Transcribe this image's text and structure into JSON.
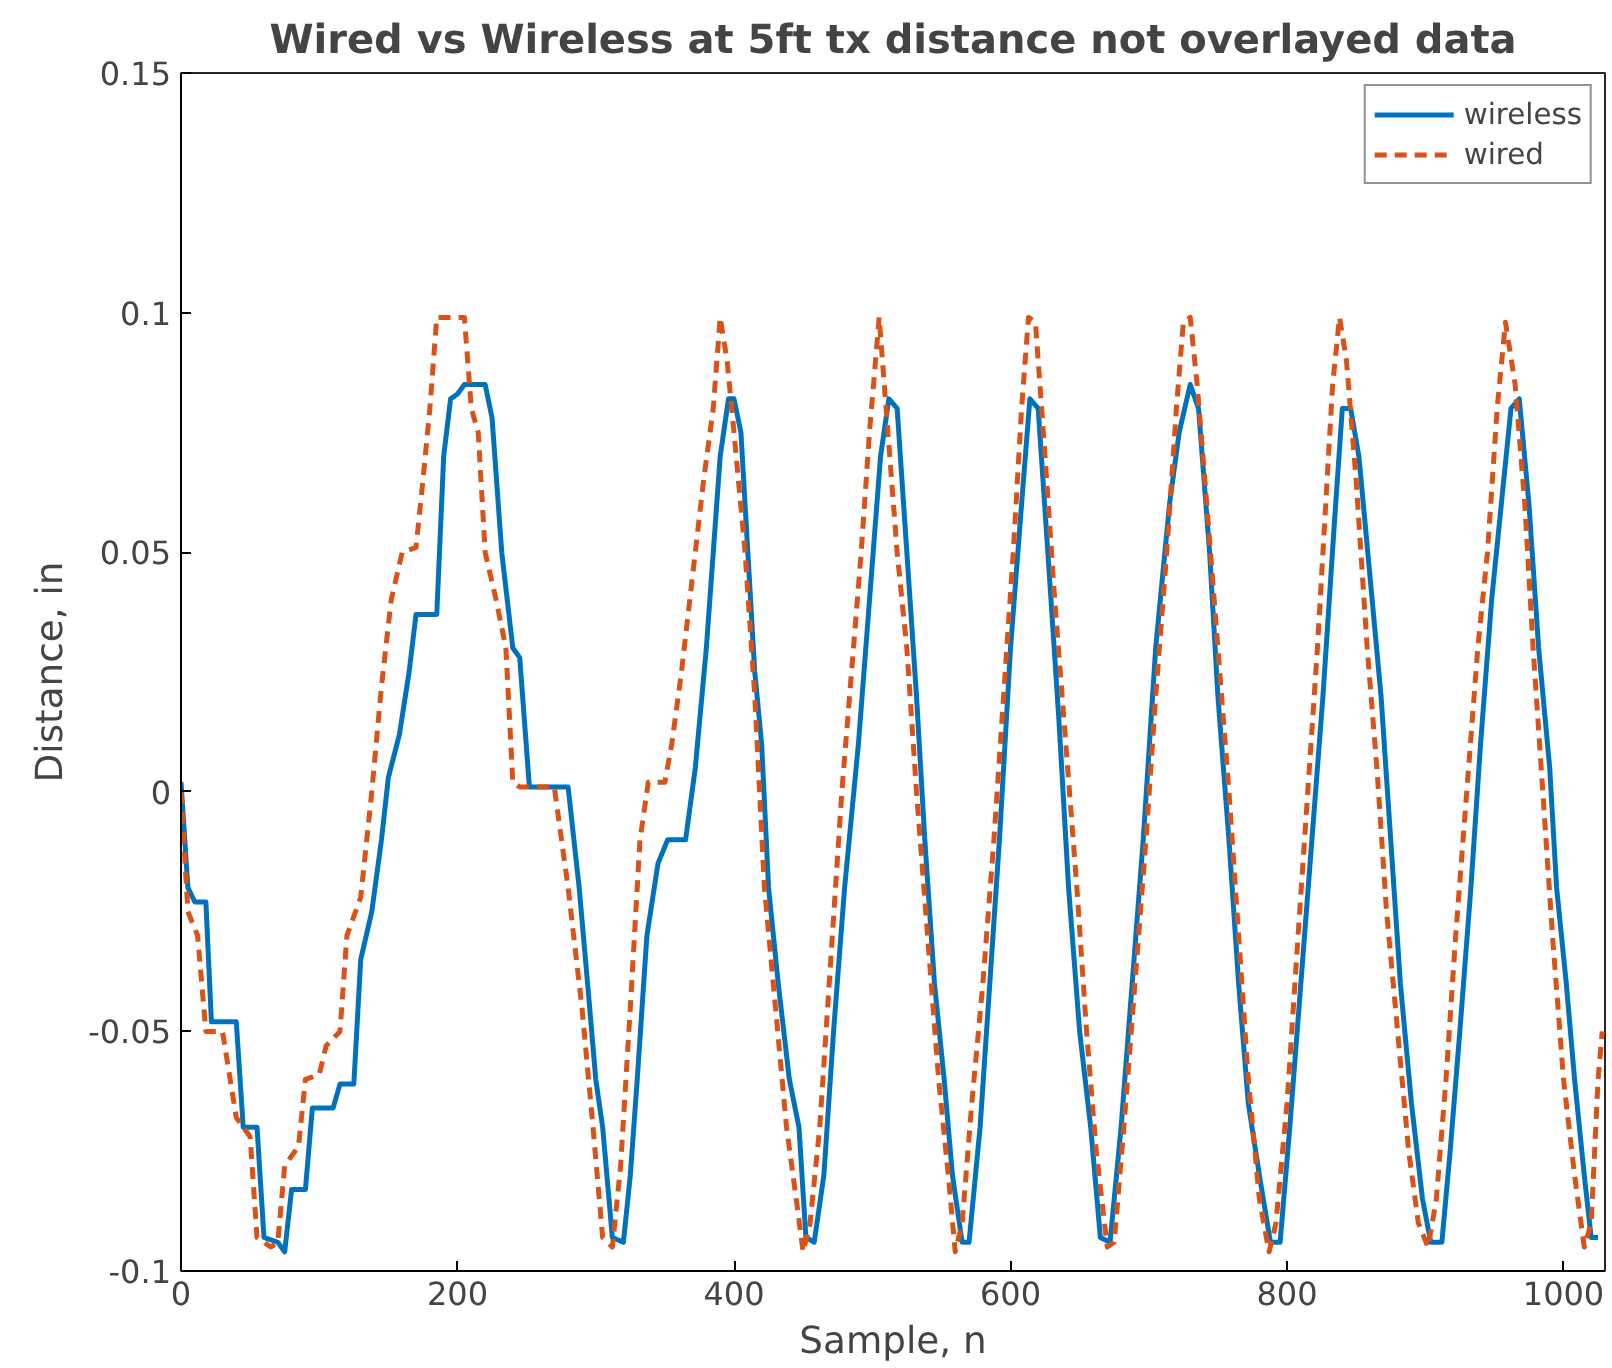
{
  "chart_data": {
    "type": "line",
    "title": "Wired vs Wireless at 5ft tx distance not overlayed data",
    "xlabel": "Sample, n",
    "ylabel": "Distance, in",
    "xlim": [
      0,
      1030
    ],
    "ylim": [
      -0.1,
      0.15
    ],
    "xticks": [
      0,
      200,
      400,
      600,
      800,
      1000
    ],
    "yticks": [
      {
        "value": -0.1,
        "label": "-0.1"
      },
      {
        "value": -0.05,
        "label": "-0.05"
      },
      0,
      {
        "value": 0.05,
        "label": "0.05"
      },
      {
        "value": 0.1,
        "label": "0.1"
      },
      {
        "value": 0.15,
        "label": "0.15"
      }
    ],
    "grid": false,
    "legend": "top right",
    "marker": "none",
    "series": [
      {
        "name": "wireless",
        "color": "#0072bd",
        "line_style": "solid",
        "x": [
          0,
          5,
          10,
          18,
          22,
          40,
          45,
          55,
          60,
          70,
          75,
          80,
          90,
          95,
          110,
          115,
          125,
          130,
          138,
          145,
          150,
          158,
          165,
          170,
          185,
          190,
          195,
          200,
          205,
          220,
          225,
          232,
          240,
          245,
          252,
          280,
          288,
          295,
          300,
          305,
          312,
          320,
          325,
          330,
          337,
          345,
          352,
          365,
          372,
          380,
          385,
          390,
          396,
          400,
          405,
          410,
          415,
          420,
          425,
          432,
          440,
          447,
          452,
          458,
          465,
          472,
          480,
          490,
          498,
          506,
          512,
          518,
          525,
          532,
          538,
          545,
          552,
          558,
          565,
          570,
          578,
          585,
          592,
          600,
          608,
          614,
          620,
          627,
          635,
          642,
          650,
          658,
          665,
          672,
          680,
          688,
          696,
          705,
          715,
          722,
          730,
          736,
          744,
          750,
          758,
          765,
          772,
          780,
          788,
          795,
          802,
          810,
          818,
          826,
          834,
          840,
          846,
          852,
          860,
          868,
          875,
          882,
          890,
          898,
          904,
          912,
          918,
          925,
          933,
          940,
          948,
          955,
          962,
          968,
          975,
          982,
          990,
          995,
          1002,
          1008,
          1015,
          1020,
          1025
        ],
        "values": [
          0.002,
          -0.02,
          -0.023,
          -0.023,
          -0.048,
          -0.048,
          -0.07,
          -0.07,
          -0.093,
          -0.094,
          -0.096,
          -0.083,
          -0.083,
          -0.066,
          -0.066,
          -0.061,
          -0.061,
          -0.035,
          -0.025,
          -0.01,
          0.003,
          0.012,
          0.025,
          0.037,
          0.037,
          0.07,
          0.082,
          0.083,
          0.085,
          0.085,
          0.078,
          0.05,
          0.03,
          0.028,
          0.001,
          0.001,
          -0.02,
          -0.043,
          -0.06,
          -0.07,
          -0.093,
          -0.094,
          -0.08,
          -0.06,
          -0.03,
          -0.015,
          -0.01,
          -0.01,
          0.005,
          0.03,
          0.05,
          0.07,
          0.082,
          0.082,
          0.075,
          0.05,
          0.025,
          0.01,
          -0.02,
          -0.04,
          -0.06,
          -0.07,
          -0.093,
          -0.094,
          -0.08,
          -0.05,
          -0.02,
          0.01,
          0.04,
          0.07,
          0.082,
          0.08,
          0.05,
          0.02,
          -0.01,
          -0.04,
          -0.06,
          -0.08,
          -0.094,
          -0.094,
          -0.07,
          -0.04,
          -0.01,
          0.03,
          0.06,
          0.082,
          0.08,
          0.05,
          0.015,
          -0.02,
          -0.05,
          -0.07,
          -0.093,
          -0.094,
          -0.07,
          -0.04,
          -0.01,
          0.03,
          0.06,
          0.075,
          0.085,
          0.08,
          0.05,
          0.02,
          -0.01,
          -0.04,
          -0.065,
          -0.08,
          -0.094,
          -0.094,
          -0.07,
          -0.04,
          -0.01,
          0.02,
          0.055,
          0.08,
          0.08,
          0.07,
          0.045,
          0.02,
          -0.01,
          -0.04,
          -0.065,
          -0.085,
          -0.094,
          -0.094,
          -0.075,
          -0.05,
          -0.02,
          0.01,
          0.04,
          0.06,
          0.08,
          0.082,
          0.06,
          0.03,
          0.005,
          -0.02,
          -0.04,
          -0.06,
          -0.08,
          -0.093,
          -0.093
        ]
      },
      {
        "name": "wired",
        "color": "#d95319",
        "line_style": "dashed",
        "x": [
          0,
          5,
          12,
          18,
          30,
          40,
          50,
          55,
          65,
          70,
          75,
          85,
          90,
          100,
          105,
          115,
          120,
          130,
          138,
          145,
          152,
          160,
          170,
          175,
          180,
          185,
          205,
          210,
          215,
          220,
          228,
          235,
          240,
          245,
          270,
          280,
          290,
          298,
          305,
          312,
          318,
          325,
          332,
          338,
          350,
          355,
          362,
          370,
          378,
          385,
          390,
          395,
          400,
          408,
          415,
          422,
          430,
          438,
          445,
          450,
          455,
          462,
          470,
          478,
          485,
          492,
          498,
          505,
          510,
          518,
          525,
          532,
          540,
          548,
          555,
          560,
          565,
          572,
          580,
          588,
          595,
          602,
          608,
          613,
          618,
          625,
          632,
          640,
          648,
          655,
          662,
          670,
          675,
          682,
          690,
          698,
          705,
          713,
          720,
          725,
          730,
          735,
          742,
          750,
          758,
          765,
          772,
          780,
          787,
          792,
          800,
          808,
          815,
          822,
          828,
          833,
          838,
          843,
          850,
          858,
          865,
          872,
          880,
          888,
          895,
          902,
          908,
          915,
          922,
          930,
          938,
          945,
          952,
          958,
          965,
          972,
          978,
          985,
          992,
          1000,
          1008,
          1015,
          1020,
          1025,
          1028
        ],
        "values": [
          0,
          -0.025,
          -0.03,
          -0.05,
          -0.05,
          -0.068,
          -0.072,
          -0.093,
          -0.095,
          -0.094,
          -0.078,
          -0.074,
          -0.06,
          -0.059,
          -0.053,
          -0.05,
          -0.03,
          -0.022,
          0,
          0.022,
          0.04,
          0.05,
          0.051,
          0.065,
          0.08,
          0.099,
          0.099,
          0.08,
          0.075,
          0.05,
          0.04,
          0.03,
          0.002,
          0.001,
          0.001,
          -0.02,
          -0.045,
          -0.07,
          -0.093,
          -0.095,
          -0.078,
          -0.045,
          -0.01,
          0.002,
          0.002,
          0.01,
          0.025,
          0.045,
          0.065,
          0.08,
          0.099,
          0.09,
          0.075,
          0.05,
          0.02,
          -0.02,
          -0.045,
          -0.07,
          -0.085,
          -0.096,
          -0.09,
          -0.07,
          -0.035,
          0,
          0.025,
          0.05,
          0.075,
          0.099,
          0.08,
          0.05,
          0.03,
          0,
          -0.03,
          -0.06,
          -0.08,
          -0.096,
          -0.09,
          -0.065,
          -0.04,
          -0.01,
          0.02,
          0.05,
          0.08,
          0.099,
          0.098,
          0.07,
          0.04,
          0.01,
          -0.02,
          -0.05,
          -0.075,
          -0.095,
          -0.094,
          -0.07,
          -0.04,
          -0.01,
          0.02,
          0.05,
          0.08,
          0.098,
          0.099,
          0.085,
          0.06,
          0.03,
          0,
          -0.03,
          -0.06,
          -0.085,
          -0.096,
          -0.09,
          -0.065,
          -0.03,
          0,
          0.03,
          0.06,
          0.085,
          0.099,
          0.09,
          0.065,
          0.03,
          0.005,
          -0.025,
          -0.05,
          -0.075,
          -0.09,
          -0.095,
          -0.085,
          -0.06,
          -0.03,
          0,
          0.03,
          0.05,
          0.08,
          0.098,
          0.085,
          0.06,
          0.03,
          0,
          -0.03,
          -0.06,
          -0.08,
          -0.095,
          -0.09,
          -0.06,
          -0.05
        ]
      }
    ]
  }
}
